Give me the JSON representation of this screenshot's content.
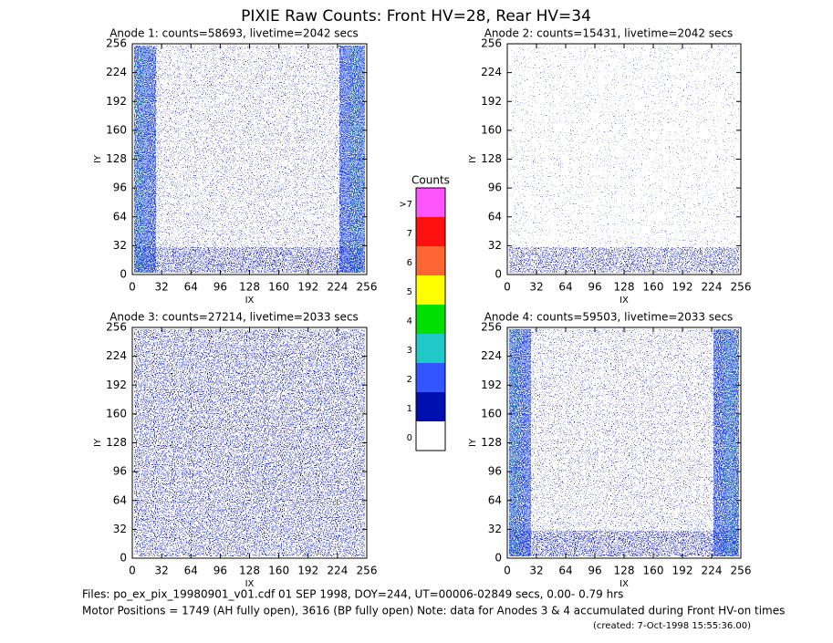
{
  "title": "PIXIE Raw Counts:  Front HV=28, Rear HV=34",
  "chart_data": [
    {
      "type": "heatmap",
      "title": "Anode 1: counts=58693, livetime=2042 secs",
      "xlabel": "IX",
      "ylabel": "IY",
      "xlim": [
        0,
        256
      ],
      "ylim": [
        0,
        256
      ],
      "xticks": [
        0,
        32,
        64,
        96,
        128,
        160,
        192,
        224,
        256
      ],
      "yticks": [
        0,
        32,
        64,
        96,
        128,
        160,
        192,
        224,
        256
      ]
    },
    {
      "type": "heatmap",
      "title": "Anode 2: counts=15431, livetime=2042 secs",
      "xlabel": "IX",
      "ylabel": "IY",
      "xlim": [
        0,
        256
      ],
      "ylim": [
        0,
        256
      ],
      "xticks": [
        0,
        32,
        64,
        96,
        128,
        160,
        192,
        224,
        256
      ],
      "yticks": [
        0,
        32,
        64,
        96,
        128,
        160,
        192,
        224,
        256
      ]
    },
    {
      "type": "heatmap",
      "title": "Anode 3: counts=27214, livetime=2033 secs",
      "xlabel": "IX",
      "ylabel": "IY",
      "xlim": [
        0,
        256
      ],
      "ylim": [
        0,
        256
      ],
      "xticks": [
        0,
        32,
        64,
        96,
        128,
        160,
        192,
        224,
        256
      ],
      "yticks": [
        0,
        32,
        64,
        96,
        128,
        160,
        192,
        224,
        256
      ]
    },
    {
      "type": "heatmap",
      "title": "Anode 4: counts=59503, livetime=2033 secs",
      "xlabel": "IX",
      "ylabel": "IY",
      "xlim": [
        0,
        256
      ],
      "ylim": [
        0,
        256
      ],
      "xticks": [
        0,
        32,
        64,
        96,
        128,
        160,
        192,
        224,
        256
      ],
      "yticks": [
        0,
        32,
        64,
        96,
        128,
        160,
        192,
        224,
        256
      ]
    }
  ],
  "colorbar": {
    "title": "Counts",
    "levels": [
      {
        "label": ">7",
        "color": "#ff55ff"
      },
      {
        "label": "7",
        "color": "#ff1010"
      },
      {
        "label": "6",
        "color": "#ff6633"
      },
      {
        "label": "5",
        "color": "#ffff00"
      },
      {
        "label": "4",
        "color": "#00e000"
      },
      {
        "label": "3",
        "color": "#20c8c8"
      },
      {
        "label": "2",
        "color": "#3355ff"
      },
      {
        "label": "1",
        "color": "#0010b0"
      },
      {
        "label": "0",
        "color": "#ffffff"
      }
    ]
  },
  "footer": {
    "files": "Files: po_ex_pix_19980901_v01.cdf    01 SEP 1998, DOY=244, UT=00006-02849 secs,  0.00- 0.79 hrs",
    "motor": "Motor Positions = 1749 (AH fully open), 3616 (BP fully open)    Note: data for Anodes 3 & 4 accumulated during Front HV-on times",
    "created": "(created:  7-Oct-1998 15:55:36.00)"
  }
}
